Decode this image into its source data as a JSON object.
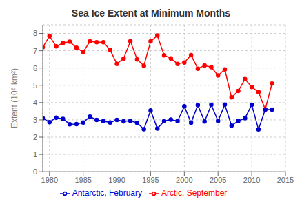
{
  "chart_data": {
    "type": "line",
    "title": "Sea Ice Extent at Minimum Months",
    "y_label": "Extent (10⁶ km²)",
    "xlim": [
      1979,
      2015
    ],
    "ylim": [
      0,
      8.5
    ],
    "xticks": [
      1980,
      1985,
      1990,
      1995,
      2000,
      2005,
      2010,
      2015
    ],
    "yticks": [
      0,
      1,
      2,
      3,
      4,
      5,
      6,
      7,
      8
    ],
    "grid": true,
    "legend": "bottom",
    "series": [
      {
        "name": "Arctic, September",
        "color": "#ff0000",
        "marker": "circle",
        "line_style": "solid",
        "x": [
          1979,
          1980,
          1981,
          1982,
          1983,
          1984,
          1985,
          1986,
          1987,
          1988,
          1989,
          1990,
          1991,
          1992,
          1993,
          1994,
          1995,
          1996,
          1997,
          1998,
          1999,
          2000,
          2001,
          2002,
          2003,
          2004,
          2005,
          2006,
          2007,
          2008,
          2009,
          2010,
          2011,
          2012,
          2013
        ],
        "values": [
          7.2,
          7.85,
          7.25,
          7.45,
          7.52,
          7.17,
          6.93,
          7.54,
          7.49,
          7.49,
          7.04,
          6.24,
          6.55,
          7.55,
          6.5,
          6.13,
          7.54,
          7.88,
          6.74,
          6.56,
          6.24,
          6.32,
          6.75,
          5.96,
          6.15,
          6.05,
          5.57,
          5.92,
          4.3,
          4.67,
          5.36,
          4.9,
          4.61,
          3.61,
          5.1
        ]
      },
      {
        "name": "Antarctic, February",
        "color": "#0000cc",
        "marker": "circle",
        "line_style": "solid",
        "x": [
          1979,
          1980,
          1981,
          1982,
          1983,
          1984,
          1985,
          1986,
          1987,
          1988,
          1989,
          1990,
          1991,
          1992,
          1993,
          1994,
          1995,
          1996,
          1997,
          1998,
          1999,
          2000,
          2001,
          2002,
          2003,
          2004,
          2005,
          2006,
          2007,
          2008,
          2009,
          2010,
          2011,
          2012,
          2013
        ],
        "values": [
          3.1,
          2.87,
          3.13,
          3.06,
          2.75,
          2.76,
          2.85,
          3.19,
          3.0,
          2.93,
          2.85,
          3.0,
          2.92,
          2.95,
          2.83,
          2.46,
          3.55,
          2.5,
          2.93,
          3.02,
          2.93,
          3.78,
          2.84,
          3.85,
          2.91,
          3.87,
          2.94,
          3.88,
          2.67,
          2.94,
          3.1,
          3.87,
          2.45,
          3.6,
          3.6
        ]
      }
    ]
  }
}
